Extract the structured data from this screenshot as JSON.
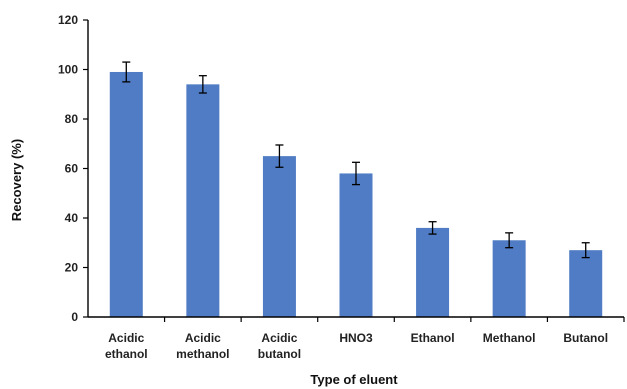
{
  "chart_data": {
    "type": "bar",
    "title": "",
    "xlabel": "Type of eluent",
    "ylabel": "Recovery (%)",
    "ylim": [
      0,
      120
    ],
    "yticks": [
      0,
      20,
      40,
      60,
      80,
      100,
      120
    ],
    "grid": false,
    "legend": "none",
    "bar_color": "#4F7CC4",
    "categories": [
      [
        "Acidic",
        "ethanol"
      ],
      [
        "Acidic",
        "methanol"
      ],
      [
        "Acidic",
        "butanol"
      ],
      [
        "HNO3"
      ],
      [
        "Ethanol"
      ],
      [
        "Methanol"
      ],
      [
        "Butanol"
      ]
    ],
    "values": [
      99,
      94,
      65,
      58,
      36,
      31,
      27
    ],
    "errors": [
      4,
      3.5,
      4.5,
      4.5,
      2.5,
      3,
      3
    ]
  }
}
